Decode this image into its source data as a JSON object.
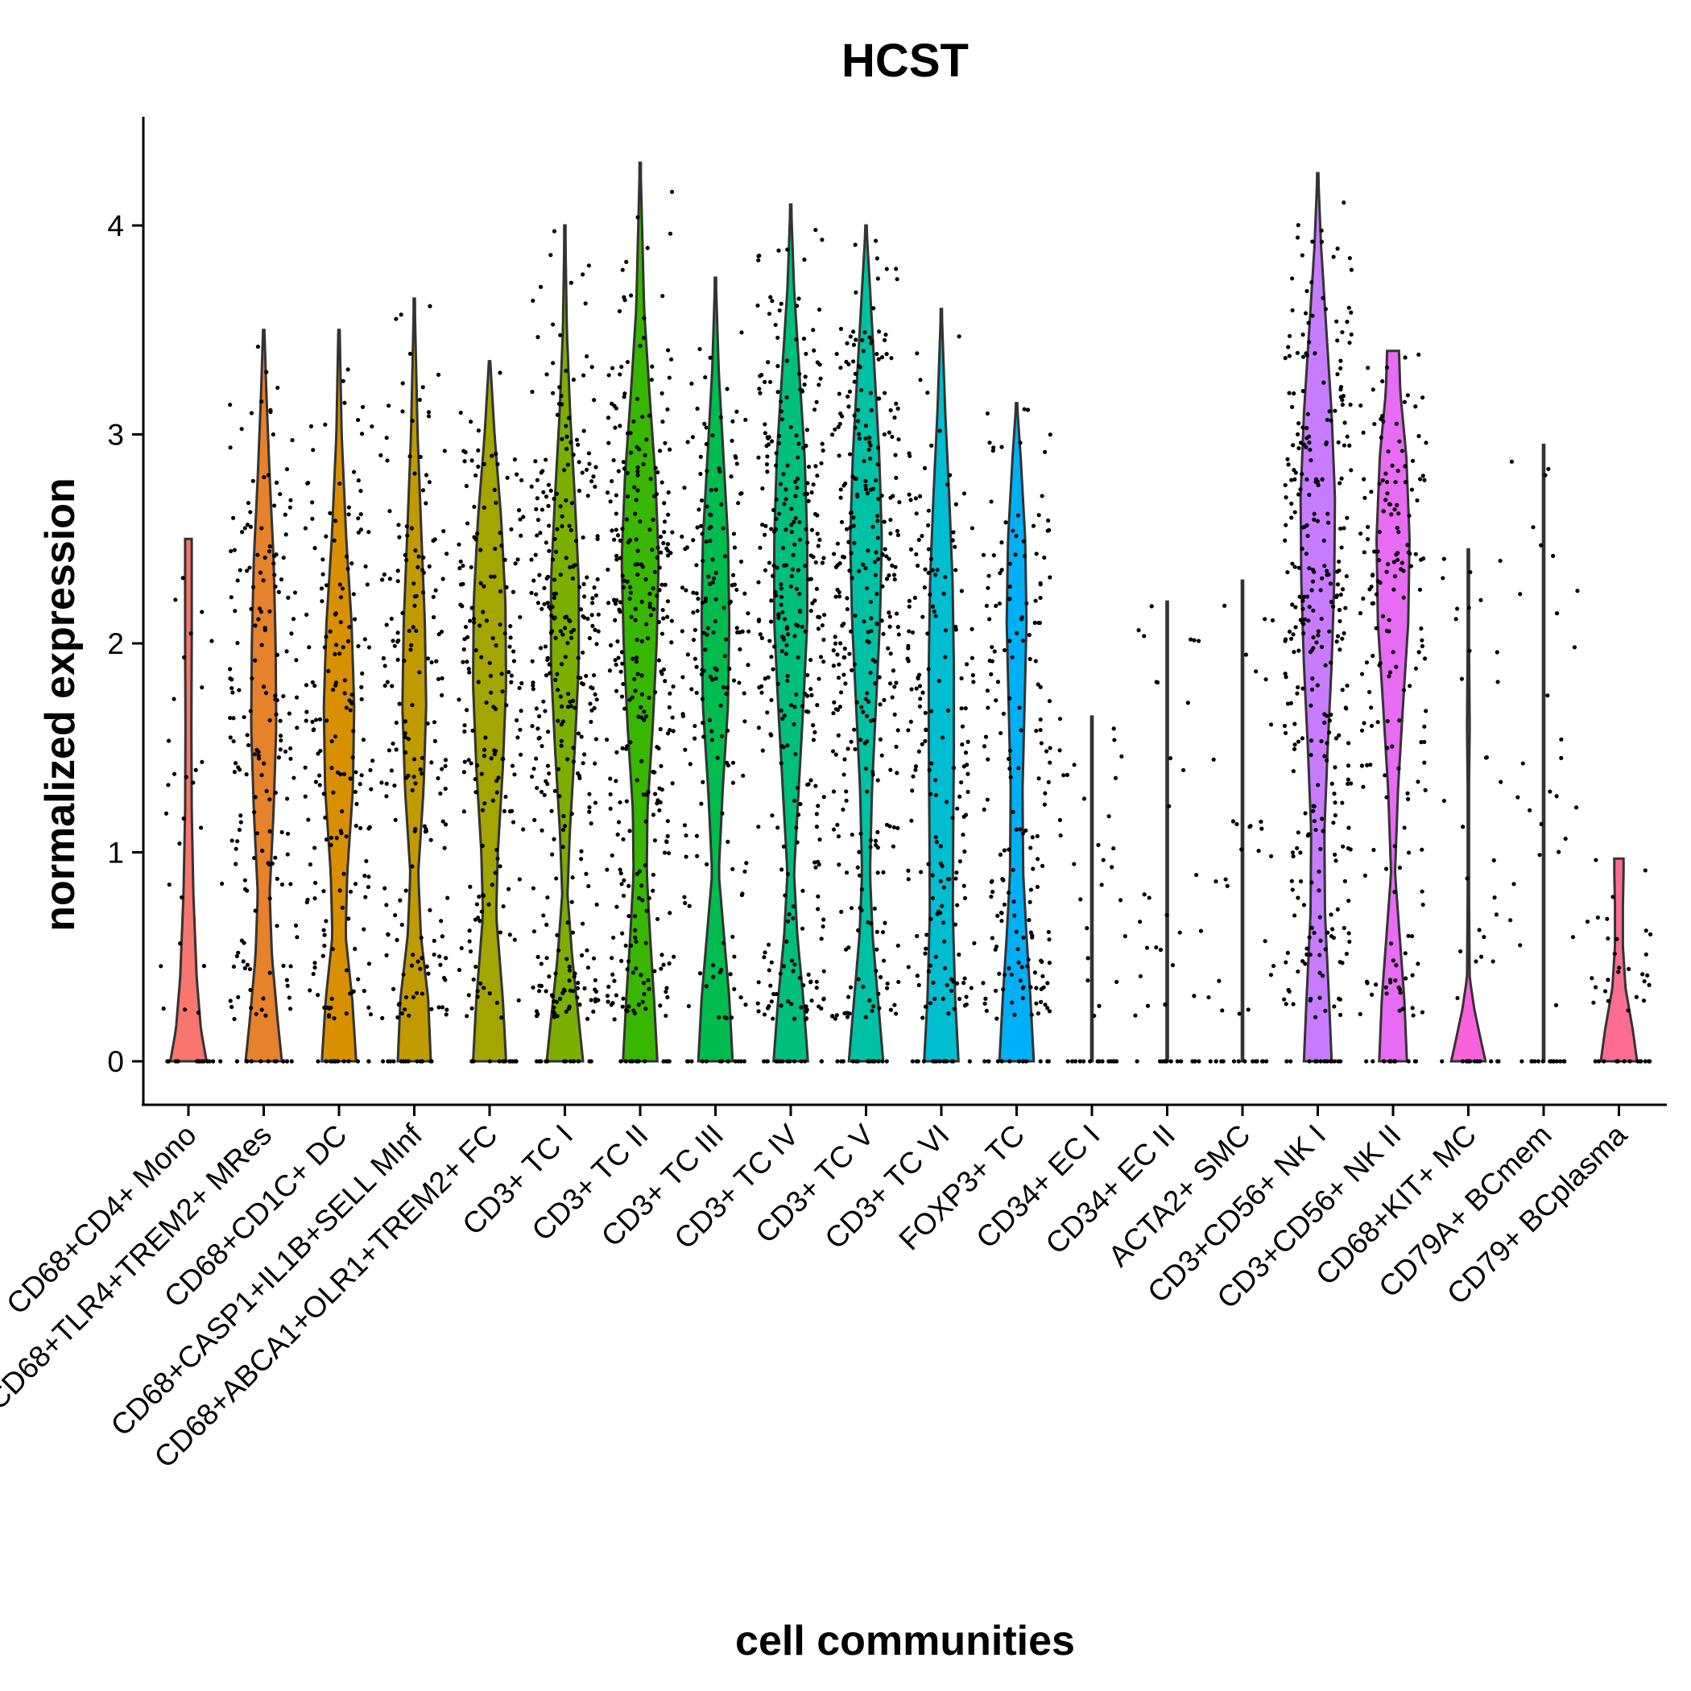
{
  "chart_data": {
    "type": "violin",
    "title": "HCST",
    "xlabel": "cell communities",
    "ylabel": "normalized expression",
    "ylim": [
      -0.2,
      4.5
    ],
    "yticks": [
      0,
      1,
      2,
      3,
      4
    ],
    "grid": false,
    "legend": "none",
    "categories": [
      {
        "label": "CD68+CD4+ Mono",
        "color": "#F8766D",
        "max": 2.5,
        "zero_frac": 0.75,
        "shape": [
          [
            0,
            0.55
          ],
          [
            0.15,
            0.38
          ],
          [
            0.4,
            0.25
          ],
          [
            0.8,
            0.15
          ],
          [
            1.2,
            0.1
          ],
          [
            1.6,
            0.09
          ],
          [
            2.0,
            0.1
          ],
          [
            2.4,
            0.1
          ],
          [
            2.5,
            0.1
          ]
        ]
      },
      {
        "label": "CD68+TLR4+TREM2+ MRes",
        "color": "#E6812C",
        "max": 3.5,
        "zero_frac": 0.45,
        "shape": [
          [
            0,
            0.55
          ],
          [
            0.2,
            0.42
          ],
          [
            0.5,
            0.25
          ],
          [
            0.8,
            0.18
          ],
          [
            1.2,
            0.3
          ],
          [
            1.6,
            0.38
          ],
          [
            2.0,
            0.36
          ],
          [
            2.4,
            0.3
          ],
          [
            2.8,
            0.18
          ],
          [
            3.2,
            0.08
          ],
          [
            3.5,
            0.02
          ]
        ]
      },
      {
        "label": "CD68+CD1C+ DC",
        "color": "#D89000",
        "max": 3.5,
        "zero_frac": 0.45,
        "shape": [
          [
            0,
            0.52
          ],
          [
            0.3,
            0.4
          ],
          [
            0.6,
            0.2
          ],
          [
            0.9,
            0.25
          ],
          [
            1.3,
            0.42
          ],
          [
            1.7,
            0.46
          ],
          [
            2.1,
            0.38
          ],
          [
            2.5,
            0.22
          ],
          [
            3.0,
            0.08
          ],
          [
            3.5,
            0.02
          ]
        ]
      },
      {
        "label": "CD68+CASP1+IL1B+SELL MInf",
        "color": "#C09B00",
        "max": 3.65,
        "zero_frac": 0.5,
        "shape": [
          [
            0,
            0.5
          ],
          [
            0.3,
            0.42
          ],
          [
            0.6,
            0.2
          ],
          [
            0.9,
            0.12
          ],
          [
            1.3,
            0.28
          ],
          [
            1.7,
            0.36
          ],
          [
            2.1,
            0.32
          ],
          [
            2.5,
            0.22
          ],
          [
            3.0,
            0.1
          ],
          [
            3.65,
            0.01
          ]
        ]
      },
      {
        "label": "CD68+ABCA1+OLR1+TREM2+ FC",
        "color": "#A3A500",
        "max": 3.35,
        "zero_frac": 0.45,
        "shape": [
          [
            0,
            0.5
          ],
          [
            0.3,
            0.4
          ],
          [
            0.7,
            0.2
          ],
          [
            1.0,
            0.25
          ],
          [
            1.4,
            0.4
          ],
          [
            1.8,
            0.5
          ],
          [
            2.2,
            0.48
          ],
          [
            2.6,
            0.35
          ],
          [
            3.0,
            0.15
          ],
          [
            3.35,
            0.02
          ]
        ]
      },
      {
        "label": "CD3+ TC I",
        "color": "#7CAE00",
        "max": 4.0,
        "zero_frac": 0.35,
        "shape": [
          [
            0,
            0.55
          ],
          [
            0.2,
            0.42
          ],
          [
            0.5,
            0.22
          ],
          [
            0.8,
            0.08
          ],
          [
            1.1,
            0.15
          ],
          [
            1.5,
            0.3
          ],
          [
            1.9,
            0.42
          ],
          [
            2.3,
            0.42
          ],
          [
            2.7,
            0.3
          ],
          [
            3.1,
            0.16
          ],
          [
            3.5,
            0.06
          ],
          [
            4.0,
            0.01
          ]
        ]
      },
      {
        "label": "CD3+ TC II",
        "color": "#39B600",
        "max": 4.3,
        "zero_frac": 0.25,
        "shape": [
          [
            0,
            0.52
          ],
          [
            0.3,
            0.42
          ],
          [
            0.6,
            0.3
          ],
          [
            0.9,
            0.2
          ],
          [
            1.2,
            0.22
          ],
          [
            1.6,
            0.38
          ],
          [
            2.0,
            0.5
          ],
          [
            2.4,
            0.56
          ],
          [
            2.8,
            0.46
          ],
          [
            3.2,
            0.28
          ],
          [
            3.6,
            0.12
          ],
          [
            4.3,
            0.01
          ]
        ]
      },
      {
        "label": "CD3+ TC III",
        "color": "#00BB4E",
        "max": 3.75,
        "zero_frac": 0.35,
        "shape": [
          [
            0,
            0.52
          ],
          [
            0.3,
            0.42
          ],
          [
            0.6,
            0.26
          ],
          [
            0.9,
            0.1
          ],
          [
            1.3,
            0.22
          ],
          [
            1.7,
            0.38
          ],
          [
            2.1,
            0.42
          ],
          [
            2.5,
            0.38
          ],
          [
            2.9,
            0.24
          ],
          [
            3.3,
            0.1
          ],
          [
            3.75,
            0.01
          ]
        ]
      },
      {
        "label": "CD3+ TC IV",
        "color": "#00BF7D",
        "max": 4.1,
        "zero_frac": 0.3,
        "shape": [
          [
            0,
            0.52
          ],
          [
            0.3,
            0.38
          ],
          [
            0.6,
            0.2
          ],
          [
            0.9,
            0.1
          ],
          [
            1.3,
            0.24
          ],
          [
            1.7,
            0.38
          ],
          [
            2.1,
            0.5
          ],
          [
            2.5,
            0.5
          ],
          [
            2.9,
            0.42
          ],
          [
            3.3,
            0.26
          ],
          [
            3.7,
            0.1
          ],
          [
            4.1,
            0.01
          ]
        ]
      },
      {
        "label": "CD3+ TC V",
        "color": "#00C1A3",
        "max": 4.0,
        "zero_frac": 0.35,
        "shape": [
          [
            0,
            0.52
          ],
          [
            0.3,
            0.36
          ],
          [
            0.6,
            0.2
          ],
          [
            0.9,
            0.12
          ],
          [
            1.3,
            0.18
          ],
          [
            1.7,
            0.3
          ],
          [
            2.1,
            0.42
          ],
          [
            2.5,
            0.48
          ],
          [
            2.9,
            0.4
          ],
          [
            3.3,
            0.26
          ],
          [
            3.7,
            0.12
          ],
          [
            4.0,
            0.01
          ]
        ]
      },
      {
        "label": "CD3+ TC VI",
        "color": "#00BDD0",
        "max": 3.6,
        "zero_frac": 0.45,
        "shape": [
          [
            0,
            0.52
          ],
          [
            0.3,
            0.42
          ],
          [
            0.7,
            0.35
          ],
          [
            1.1,
            0.36
          ],
          [
            1.5,
            0.38
          ],
          [
            1.9,
            0.38
          ],
          [
            2.3,
            0.34
          ],
          [
            2.7,
            0.24
          ],
          [
            3.1,
            0.12
          ],
          [
            3.6,
            0.01
          ]
        ]
      },
      {
        "label": "FOXP3+ TC",
        "color": "#00B0F6",
        "max": 3.15,
        "zero_frac": 0.45,
        "shape": [
          [
            0,
            0.52
          ],
          [
            0.3,
            0.42
          ],
          [
            0.6,
            0.3
          ],
          [
            0.9,
            0.2
          ],
          [
            1.3,
            0.18
          ],
          [
            1.7,
            0.24
          ],
          [
            2.1,
            0.3
          ],
          [
            2.5,
            0.26
          ],
          [
            2.9,
            0.12
          ],
          [
            3.15,
            0.01
          ]
        ]
      },
      {
        "label": "CD34+ EC I",
        "color": "#35A2FF",
        "max": 1.65,
        "zero_frac": 0.95,
        "shape": [
          [
            0,
            0.02
          ],
          [
            1.65,
            0.02
          ]
        ]
      },
      {
        "label": "CD34+ EC II",
        "color": "#9590FF",
        "max": 2.2,
        "zero_frac": 0.95,
        "shape": [
          [
            0,
            0.02
          ],
          [
            2.2,
            0.02
          ]
        ]
      },
      {
        "label": "ACTA2+ SMC",
        "color": "#C77CFF",
        "max": 2.3,
        "zero_frac": 0.95,
        "shape": [
          [
            0,
            0.02
          ],
          [
            2.3,
            0.02
          ]
        ]
      },
      {
        "label": "CD3+CD56+ NK I",
        "color": "#C77CFF",
        "max": 4.25,
        "zero_frac": 0.2,
        "shape": [
          [
            0,
            0.42
          ],
          [
            0.3,
            0.34
          ],
          [
            0.7,
            0.22
          ],
          [
            1.1,
            0.2
          ],
          [
            1.5,
            0.3
          ],
          [
            1.9,
            0.42
          ],
          [
            2.3,
            0.5
          ],
          [
            2.7,
            0.52
          ],
          [
            3.1,
            0.42
          ],
          [
            3.5,
            0.26
          ],
          [
            3.9,
            0.1
          ],
          [
            4.25,
            0.01
          ]
        ]
      },
      {
        "label": "CD3+CD56+ NK II",
        "color": "#E76BF3",
        "max": 3.4,
        "zero_frac": 0.25,
        "shape": [
          [
            0,
            0.42
          ],
          [
            0.3,
            0.34
          ],
          [
            0.6,
            0.2
          ],
          [
            0.9,
            0.06
          ],
          [
            1.3,
            0.15
          ],
          [
            1.7,
            0.3
          ],
          [
            2.1,
            0.46
          ],
          [
            2.5,
            0.5
          ],
          [
            2.9,
            0.4
          ],
          [
            3.2,
            0.22
          ],
          [
            3.4,
            0.18
          ]
        ]
      },
      {
        "label": "CD68+KIT+ MC",
        "color": "#FA62DB",
        "max": 2.45,
        "zero_frac": 0.85,
        "shape": [
          [
            0,
            0.52
          ],
          [
            0.1,
            0.38
          ],
          [
            0.25,
            0.18
          ],
          [
            0.4,
            0.04
          ],
          [
            0.8,
            0.02
          ],
          [
            1.3,
            0.02
          ],
          [
            1.6,
            0.04
          ],
          [
            2.0,
            0.02
          ],
          [
            2.45,
            0.01
          ]
        ]
      },
      {
        "label": "CD79A+ BCmem",
        "color": "#FF62BC",
        "max": 2.95,
        "zero_frac": 0.95,
        "shape": [
          [
            0,
            0.02
          ],
          [
            2.95,
            0.02
          ]
        ]
      },
      {
        "label": "CD79+ BCplasma",
        "color": "#FF6C91",
        "max": 0.97,
        "zero_frac": 0.6,
        "shape": [
          [
            0,
            0.55
          ],
          [
            0.15,
            0.42
          ],
          [
            0.35,
            0.2
          ],
          [
            0.55,
            0.12
          ],
          [
            0.75,
            0.12
          ],
          [
            0.9,
            0.14
          ],
          [
            0.97,
            0.14
          ]
        ]
      }
    ]
  }
}
